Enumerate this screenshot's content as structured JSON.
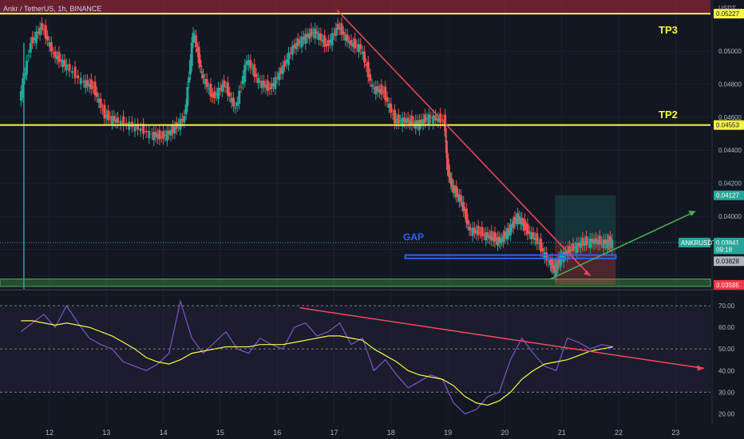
{
  "header": {
    "symbol": "Ankr / TetherUS, 1h, BINANCE",
    "currency": "USDT"
  },
  "colors": {
    "background": "#131722",
    "up": "#26a69a",
    "down": "#ef5350",
    "yellow": "#f5f548",
    "trend_red": "#f04a5a",
    "trend_green": "#4caf50",
    "gap_blue": "#2962ff",
    "rsi_line": "#7e57c2",
    "rsi_ma": "#f5f548",
    "grid": "#1e222d",
    "axis_text": "#b2b5be"
  },
  "annotations": {
    "tp3": "TP3",
    "tp2": "TP2",
    "gap": "GAP"
  },
  "price_badges": [
    {
      "text": "0.05227",
      "price": 0.05227,
      "style": "yellow"
    },
    {
      "text": "0.04553",
      "price": 0.04553,
      "style": "yellow"
    },
    {
      "text": "0.04127",
      "price": 0.04127,
      "style": "teal"
    },
    {
      "text": "ANKRUSDT",
      "price": 0.03841,
      "style": "symbol"
    },
    {
      "text": "0.03841",
      "price": 0.03841,
      "style": "teal"
    },
    {
      "text": "09:18",
      "price": 0.038,
      "style": "teal-small"
    },
    {
      "text": "0.03828",
      "price": 0.03728,
      "style": "grey"
    },
    {
      "text": "0.03585",
      "price": 0.03585,
      "style": "red"
    }
  ],
  "chart_data": [
    {
      "type": "line",
      "title": "Ankr / TetherUS, 1h, BINANCE",
      "y_axis_label": "USDT",
      "x_ticks": [
        "12",
        "13",
        "14",
        "15",
        "16",
        "17",
        "18",
        "19",
        "20",
        "21",
        "22",
        "23"
      ],
      "y_ticks": [
        "0.05000",
        "0.04800",
        "0.04600",
        "0.04400",
        "0.04200",
        "0.04000",
        "0.03800"
      ],
      "ylim": [
        0.0356,
        0.0531
      ],
      "x_days": [
        11.5,
        11.7,
        11.9,
        12.1,
        12.3,
        12.6,
        12.8,
        13.0,
        13.2,
        13.5,
        13.8,
        14.0,
        14.2,
        14.4,
        14.55,
        14.7,
        14.9,
        15.1,
        15.3,
        15.5,
        15.7,
        15.9,
        16.1,
        16.3,
        16.5,
        16.7,
        16.9,
        17.1,
        17.3,
        17.5,
        17.7,
        17.9,
        18.1,
        18.3,
        18.5,
        18.7,
        18.95,
        19.0,
        19.1,
        19.25,
        19.4,
        19.6,
        19.8,
        19.95,
        20.1,
        20.25,
        20.4,
        20.6,
        20.8,
        20.9,
        21.0,
        21.2,
        21.4,
        21.6,
        21.8,
        21.9
      ],
      "close": [
        0.047,
        0.0505,
        0.0515,
        0.0498,
        0.0492,
        0.0482,
        0.0478,
        0.0461,
        0.0458,
        0.0455,
        0.045,
        0.0448,
        0.0452,
        0.046,
        0.0512,
        0.0486,
        0.0472,
        0.048,
        0.0465,
        0.0495,
        0.0482,
        0.0477,
        0.0488,
        0.0502,
        0.0508,
        0.0512,
        0.0503,
        0.0515,
        0.0505,
        0.0502,
        0.0478,
        0.0475,
        0.0458,
        0.0458,
        0.0456,
        0.046,
        0.0458,
        0.043,
        0.0417,
        0.041,
        0.0392,
        0.039,
        0.0387,
        0.0385,
        0.0392,
        0.04,
        0.0392,
        0.0385,
        0.0372,
        0.0368,
        0.0375,
        0.038,
        0.0384,
        0.0385,
        0.0384,
        0.03841
      ],
      "horizontal_lines": [
        0.05227,
        0.04553
      ],
      "zones": [
        {
          "name": "long-target",
          "from": 0.03841,
          "to": 0.04127
        },
        {
          "name": "stop",
          "from": 0.03585,
          "to": 0.03841
        }
      ]
    },
    {
      "type": "line",
      "title": "RSI",
      "y_ticks": [
        "70.00",
        "60.00",
        "50.00",
        "40.00",
        "30.00",
        "20.00"
      ],
      "ylim": [
        15,
        77
      ],
      "bands": [
        70,
        50,
        30
      ],
      "x_days": [
        11.5,
        11.7,
        11.9,
        12.1,
        12.3,
        12.5,
        12.7,
        12.9,
        13.1,
        13.3,
        13.5,
        13.7,
        13.9,
        14.1,
        14.3,
        14.5,
        14.7,
        14.9,
        15.1,
        15.3,
        15.5,
        15.7,
        15.9,
        16.1,
        16.3,
        16.5,
        16.7,
        16.9,
        17.1,
        17.3,
        17.5,
        17.7,
        17.9,
        18.1,
        18.3,
        18.5,
        18.7,
        18.9,
        19.1,
        19.3,
        19.5,
        19.7,
        19.9,
        20.1,
        20.3,
        20.5,
        20.7,
        20.9,
        21.1,
        21.3,
        21.5,
        21.7,
        21.9
      ],
      "series": [
        {
          "values": [
            58,
            62,
            66,
            60,
            70,
            62,
            55,
            52,
            50,
            44,
            42,
            40,
            43,
            48,
            72,
            55,
            48,
            53,
            58,
            50,
            48,
            55,
            52,
            50,
            60,
            62,
            56,
            58,
            62,
            52,
            55,
            40,
            45,
            38,
            32,
            35,
            38,
            36,
            25,
            20,
            22,
            28,
            30,
            45,
            55,
            48,
            42,
            40,
            55,
            53,
            50,
            52,
            51
          ]
        },
        {
          "values": [
            63,
            63,
            62,
            61,
            62,
            61,
            60,
            58,
            56,
            53,
            50,
            46,
            44,
            43,
            45,
            48,
            49,
            50,
            51,
            51,
            51,
            52,
            52,
            52,
            53,
            54,
            55,
            56,
            56,
            55,
            54,
            50,
            47,
            44,
            40,
            38,
            37,
            36,
            33,
            28,
            25,
            24,
            26,
            30,
            36,
            40,
            43,
            44,
            45,
            47,
            49,
            50,
            51
          ]
        }
      ],
      "trendline": {
        "from": [
          16.4,
          69
        ],
        "to": [
          23.5,
          41
        ]
      }
    }
  ]
}
